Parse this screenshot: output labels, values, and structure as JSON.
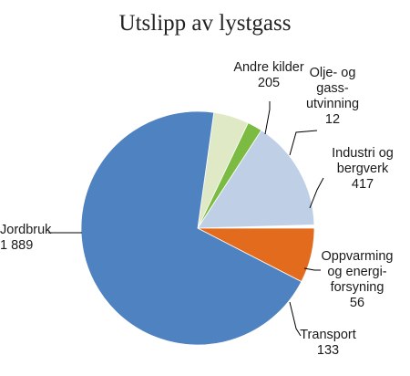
{
  "chart_data": {
    "type": "pie",
    "title": "Utslipp av lystgass",
    "start_angle_deg": 0,
    "direction": "clockwise",
    "slices": [
      {
        "key": "olje-og-gassutvinning",
        "label_lines": [
          "Olje- og",
          "gass-",
          "utvinning",
          "12"
        ],
        "value": 12,
        "color": "#ffffff"
      },
      {
        "key": "industri-og-bergverk",
        "label_lines": [
          "Industri og",
          "bergverk",
          "417"
        ],
        "value": 417,
        "color": "#bfd0e6"
      },
      {
        "key": "oppvarming-og-energiforsyning",
        "label_lines": [
          "Oppvarming",
          "og energi-",
          "forsyning",
          "56"
        ],
        "value": 56,
        "color": "#7cbb42"
      },
      {
        "key": "transport",
        "label_lines": [
          "Transport",
          "133"
        ],
        "value": 133,
        "color": "#dfe9c6"
      },
      {
        "key": "jordbruk",
        "label_lines": [
          "Jordbruk",
          "1 889"
        ],
        "value": 1889,
        "color": "#4f82c0"
      },
      {
        "key": "andre-kilder",
        "label_lines": [
          "Andre kilder",
          "205"
        ],
        "value": 205,
        "color": "#e26b1e"
      }
    ]
  }
}
